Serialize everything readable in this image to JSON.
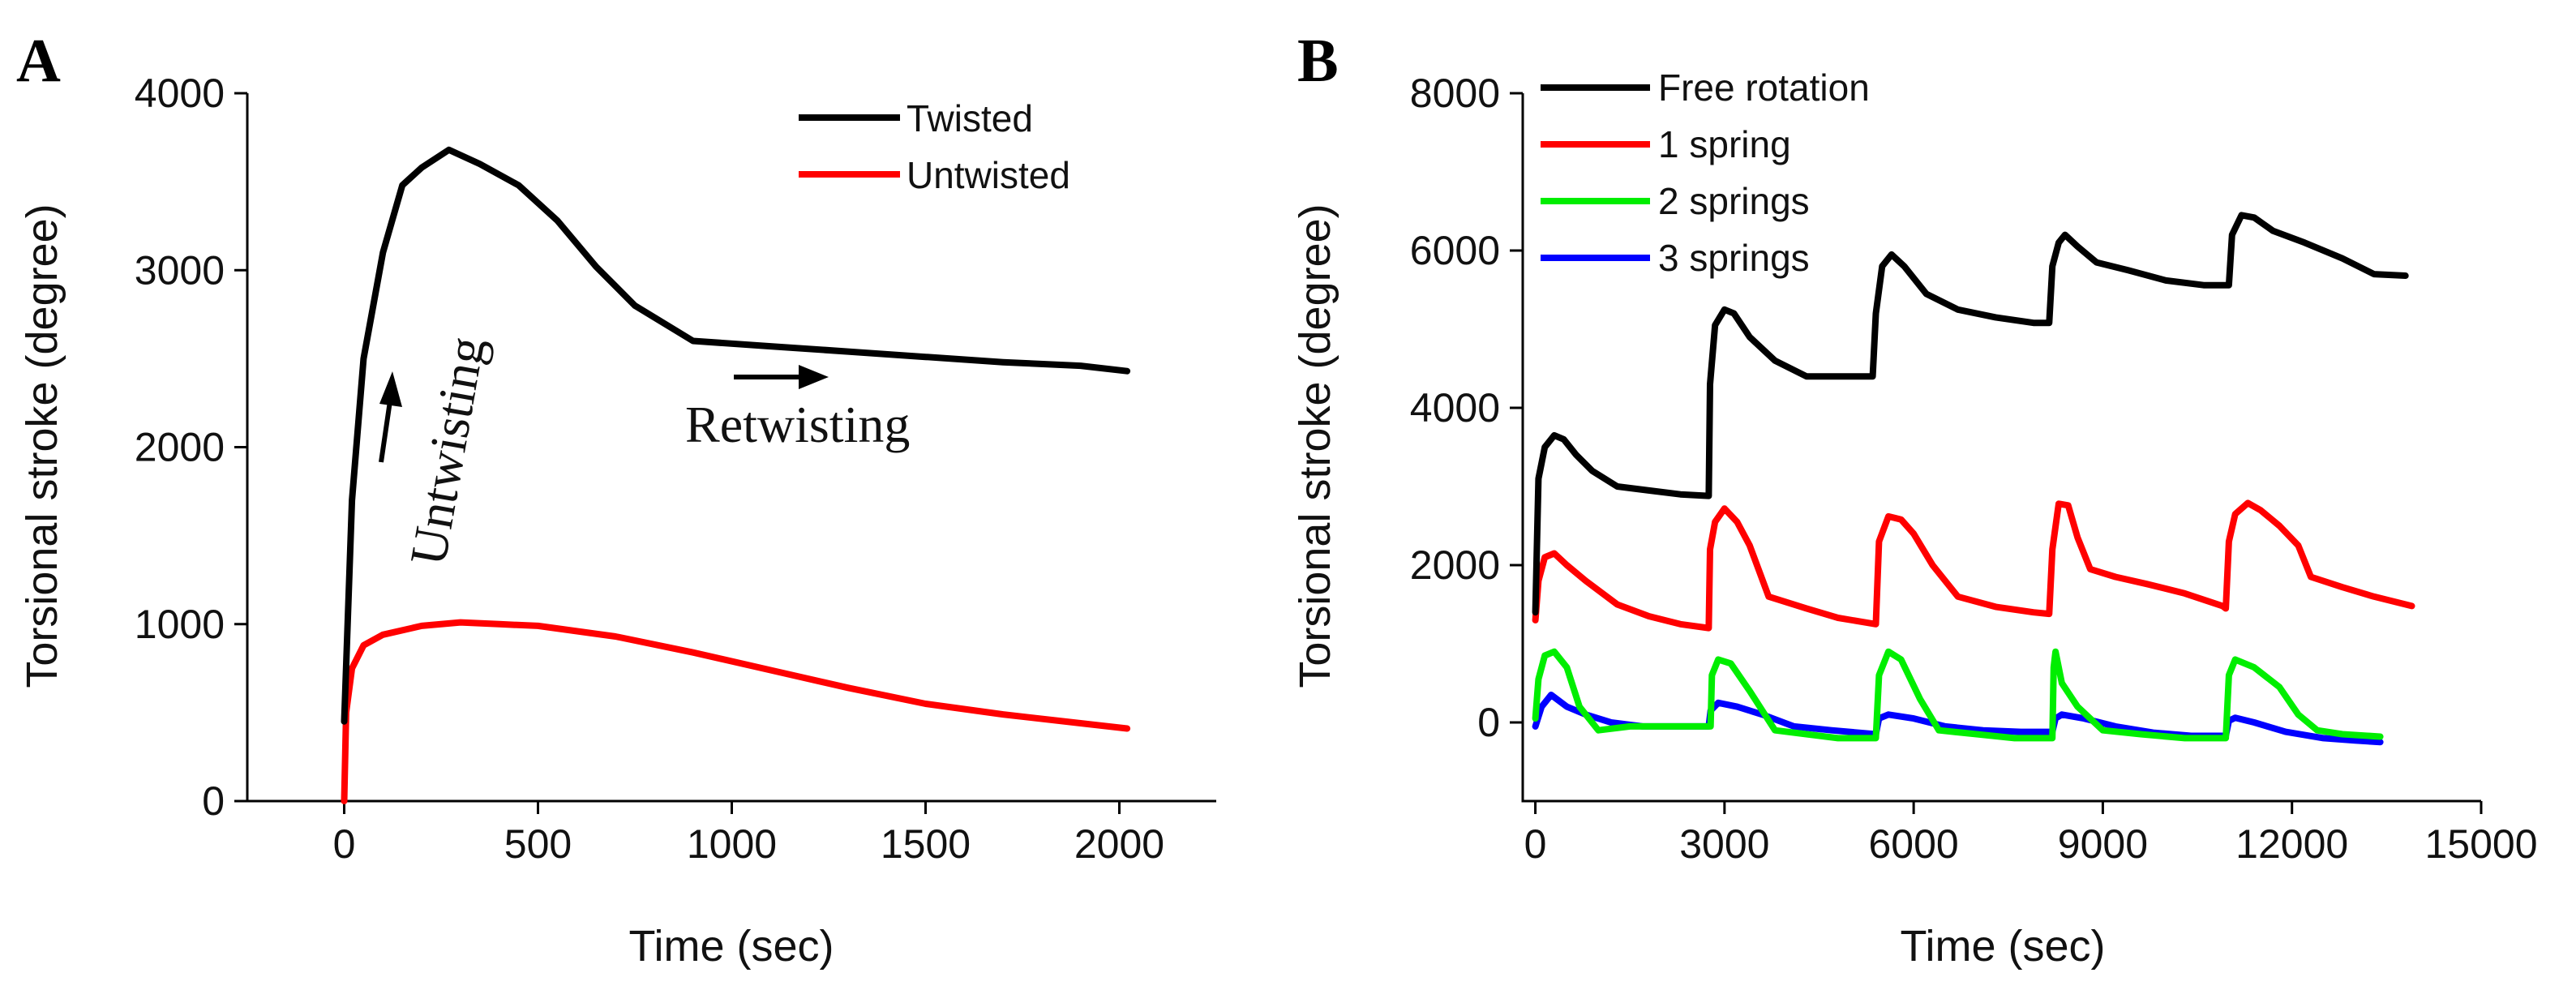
{
  "chart_data": [
    {
      "panel_label": "A",
      "type": "line",
      "xlabel": "Time (sec)",
      "ylabel": "Torsional stroke (degree)",
      "xlim": [
        -250,
        2250
      ],
      "ylim": [
        0,
        4000
      ],
      "xticks": [
        0,
        500,
        1000,
        1500,
        2000
      ],
      "yticks": [
        0,
        1000,
        2000,
        3000,
        4000
      ],
      "legend_position": "top-right",
      "series": [
        {
          "name": "Twisted",
          "color": "#000000",
          "x": [
            0,
            20,
            50,
            100,
            150,
            200,
            270,
            350,
            450,
            550,
            650,
            750,
            900,
            1100,
            1300,
            1500,
            1700,
            1900,
            2020
          ],
          "y": [
            450,
            1700,
            2500,
            3100,
            3480,
            3580,
            3680,
            3600,
            3480,
            3280,
            3020,
            2800,
            2600,
            2570,
            2540,
            2510,
            2480,
            2460,
            2430
          ]
        },
        {
          "name": "Untwisted",
          "color": "#ff0000",
          "x": [
            0,
            5,
            20,
            50,
            100,
            200,
            300,
            400,
            500,
            700,
            900,
            1100,
            1300,
            1500,
            1700,
            1900,
            2020
          ],
          "y": [
            0,
            500,
            750,
            880,
            940,
            990,
            1010,
            1000,
            990,
            930,
            840,
            740,
            640,
            550,
            490,
            440,
            410
          ]
        }
      ],
      "annotations": [
        {
          "text": "Untwisting",
          "type": "rotated_text_with_up_arrow"
        },
        {
          "text": "Retwisting",
          "type": "text_with_right_arrow"
        }
      ]
    },
    {
      "panel_label": "B",
      "type": "line",
      "xlabel": "Time (sec)",
      "ylabel": "Torsional stroke (degree)",
      "xlim": [
        -200,
        15000
      ],
      "ylim": [
        -1000,
        8000
      ],
      "xticks": [
        0,
        3000,
        6000,
        9000,
        12000,
        15000
      ],
      "yticks": [
        0,
        2000,
        4000,
        6000,
        8000
      ],
      "legend_position": "top-left",
      "series": [
        {
          "name": "Free rotation",
          "color": "#000000",
          "x": [
            0,
            50,
            150,
            300,
            450,
            650,
            900,
            1300,
            1800,
            2300,
            2750,
            2770,
            2850,
            3000,
            3150,
            3400,
            3800,
            4300,
            4800,
            5350,
            5400,
            5500,
            5650,
            5850,
            6200,
            6700,
            7300,
            7900,
            8150,
            8200,
            8300,
            8400,
            8600,
            8900,
            9400,
            10000,
            10600,
            10950,
            11000,
            11050,
            11200,
            11400,
            11700,
            12200,
            12800,
            13300,
            13800
          ],
          "y": [
            1400,
            3100,
            3500,
            3650,
            3600,
            3400,
            3200,
            3000,
            2950,
            2900,
            2880,
            4300,
            5050,
            5250,
            5200,
            4900,
            4600,
            4400,
            4400,
            4400,
            5200,
            5800,
            5950,
            5800,
            5450,
            5250,
            5150,
            5080,
            5080,
            5800,
            6100,
            6200,
            6050,
            5850,
            5750,
            5620,
            5560,
            5560,
            5560,
            6200,
            6450,
            6420,
            6250,
            6100,
            5900,
            5700,
            5680
          ]
        },
        {
          "name": "1 spring",
          "color": "#ff0000",
          "x": [
            0,
            50,
            150,
            300,
            500,
            800,
            1300,
            1800,
            2300,
            2750,
            2770,
            2850,
            3000,
            3200,
            3400,
            3700,
            4300,
            4800,
            5400,
            5450,
            5600,
            5800,
            6000,
            6300,
            6700,
            7300,
            7900,
            8150,
            8200,
            8300,
            8450,
            8600,
            8800,
            9200,
            9700,
            10300,
            10900,
            10950,
            11000,
            11100,
            11300,
            11500,
            11800,
            12100,
            12300,
            12800,
            13300,
            13900
          ],
          "y": [
            1300,
            1800,
            2100,
            2150,
            2000,
            1800,
            1500,
            1350,
            1250,
            1200,
            2200,
            2550,
            2720,
            2550,
            2250,
            1600,
            1450,
            1330,
            1250,
            2300,
            2620,
            2580,
            2400,
            2000,
            1600,
            1470,
            1400,
            1380,
            2200,
            2780,
            2760,
            2350,
            1950,
            1850,
            1760,
            1640,
            1480,
            1450,
            2300,
            2650,
            2790,
            2700,
            2500,
            2250,
            1850,
            1720,
            1600,
            1480
          ]
        },
        {
          "name": "2 springs",
          "color": "#00ee00",
          "x": [
            0,
            50,
            150,
            300,
            500,
            700,
            1000,
            1500,
            2000,
            2500,
            2780,
            2800,
            2900,
            3100,
            3400,
            3800,
            4300,
            4800,
            5400,
            5450,
            5600,
            5800,
            6100,
            6400,
            7000,
            7600,
            8200,
            8220,
            8250,
            8350,
            8600,
            9000,
            9600,
            10300,
            10950,
            11000,
            11100,
            11400,
            11800,
            12100,
            12400,
            12800,
            13400
          ],
          "y": [
            50,
            550,
            850,
            900,
            700,
            200,
            -100,
            -50,
            -50,
            -50,
            -50,
            600,
            800,
            750,
            400,
            -100,
            -150,
            -200,
            -200,
            600,
            900,
            800,
            300,
            -100,
            -150,
            -200,
            -200,
            700,
            900,
            500,
            200,
            -100,
            -150,
            -200,
            -200,
            600,
            800,
            700,
            450,
            100,
            -100,
            -150,
            -180
          ]
        },
        {
          "name": "3 springs",
          "color": "#0000ff",
          "x": [
            0,
            100,
            250,
            500,
            800,
            1200,
            1700,
            2200,
            2750,
            2780,
            2900,
            3200,
            3600,
            4100,
            4700,
            5400,
            5450,
            5600,
            6000,
            6500,
            7100,
            7700,
            8200,
            8250,
            8350,
            8700,
            9200,
            9800,
            10400,
            10950,
            11000,
            11100,
            11400,
            11900,
            12500,
            13000,
            13400
          ],
          "y": [
            -50,
            200,
            350,
            200,
            100,
            0,
            -50,
            -50,
            -50,
            150,
            250,
            200,
            100,
            -50,
            -100,
            -150,
            50,
            100,
            50,
            -50,
            -100,
            -120,
            -120,
            50,
            100,
            50,
            -50,
            -130,
            -170,
            -170,
            20,
            60,
            0,
            -120,
            -200,
            -230,
            -250
          ]
        }
      ]
    }
  ]
}
